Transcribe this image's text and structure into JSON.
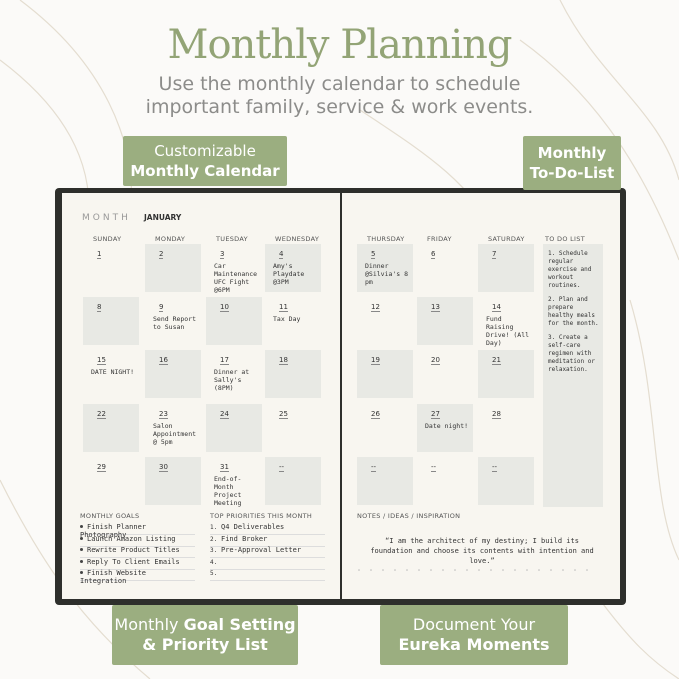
{
  "header": {
    "title": "Monthly Planning",
    "subtitle": [
      "Use the monthly calendar to schedule",
      "important family, service & work events."
    ]
  },
  "badges": {
    "calendar": {
      "line1": "Customizable",
      "line2": "Monthly Calendar"
    },
    "todo": {
      "line1": "Monthly",
      "line2": "To-Do-List"
    },
    "goals": {
      "line1_regular": "Monthly",
      "line1_bold": "Goal Setting",
      "line2": "& Priority List"
    },
    "notes": {
      "line1": "Document Your",
      "line2": "Eureka Moments"
    }
  },
  "planner": {
    "month_label": "MONTH",
    "month": "JANUARY",
    "weekdays": [
      "SUNDAY",
      "MONDAY",
      "TUESDAY",
      "WEDNESDAY",
      "THURSDAY",
      "FRIDAY",
      "SATURDAY"
    ],
    "todo_label": "TO DO LIST",
    "todo": [
      "1. Schedule regular exercise and workout routines.",
      "2. Plan and prepare healthy meals for the month.",
      "3. Create a self-care regimen with meditation or relaxation."
    ],
    "weeks": [
      [
        {
          "day": "1"
        },
        {
          "day": "2",
          "shaded": true
        },
        {
          "day": "3",
          "note": "Car Maintenance UFC Fight @6PM"
        },
        {
          "day": "4",
          "shaded": true,
          "note": "Amy's Playdate @3PM"
        },
        {
          "day": "5",
          "shaded": true,
          "note": "Dinner @Silvia's 8 pm"
        },
        {
          "day": "6"
        },
        {
          "day": "7",
          "shaded": true
        }
      ],
      [
        {
          "day": "8",
          "shaded": true
        },
        {
          "day": "9",
          "note": "Send Report to Susan"
        },
        {
          "day": "10",
          "shaded": true
        },
        {
          "day": "11",
          "note": "Tax Day"
        },
        {
          "day": "12"
        },
        {
          "day": "13",
          "shaded": true
        },
        {
          "day": "14",
          "note": "Fund Raising Drive! (All Day)"
        }
      ],
      [
        {
          "day": "15",
          "note": "DATE NIGHT!"
        },
        {
          "day": "16",
          "shaded": true
        },
        {
          "day": "17",
          "note": "Dinner at Sally's (8PM)"
        },
        {
          "day": "18",
          "shaded": true
        },
        {
          "day": "19",
          "shaded": true
        },
        {
          "day": "20"
        },
        {
          "day": "21",
          "shaded": true
        }
      ],
      [
        {
          "day": "22",
          "shaded": true
        },
        {
          "day": "23",
          "note": "Salon Appointment @ 5pm"
        },
        {
          "day": "24",
          "shaded": true
        },
        {
          "day": "25"
        },
        {
          "day": "26"
        },
        {
          "day": "27",
          "shaded": true,
          "note": "Date night!"
        },
        {
          "day": "28"
        }
      ],
      [
        {
          "day": "29"
        },
        {
          "day": "30",
          "shaded": true
        },
        {
          "day": "31",
          "note": "End-of-Month Project Meeting"
        },
        {
          "day": "--",
          "shaded": true
        },
        {
          "day": "--",
          "shaded": true
        },
        {
          "day": "--"
        },
        {
          "day": "--",
          "shaded": true
        }
      ]
    ],
    "goals_label": "MONTHLY GOALS",
    "goals": [
      "Finish Planner Photography",
      "Launch Amazon Listing",
      "Rewrite Product Titles",
      "Reply To Client Emails",
      "Finish Website Integration"
    ],
    "priorities_label": "TOP PRIORITIES THIS MONTH",
    "priorities": [
      {
        "number": "1.",
        "text": "Q4 Deliverables"
      },
      {
        "number": "2.",
        "text": "Find Broker"
      },
      {
        "number": "3.",
        "text": "Pre-Approval Letter"
      },
      {
        "number": "4."
      },
      {
        "number": "5."
      }
    ],
    "notes_label": "NOTES / IDEAS / INSPIRATION",
    "quote": "“I am the architect of my destiny; I build its foundation and choose its contents with intention and love.”"
  }
}
